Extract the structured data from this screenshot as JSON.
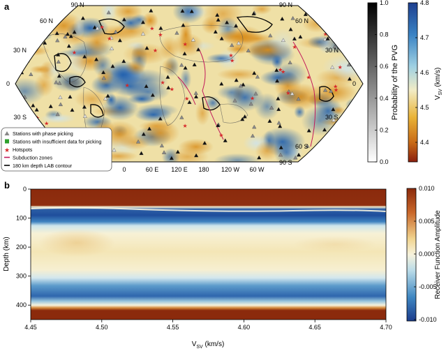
{
  "panel_a": {
    "label": "a",
    "lat_labels": {
      "left": [
        "90 N",
        "60 N",
        "30 N",
        "0",
        "30 S"
      ],
      "right": [
        "90 N",
        "60 N",
        "30 N",
        "0",
        "30 S",
        "60 S",
        "90 S"
      ]
    },
    "lon_labels": [
      "0",
      "60 E",
      "120 E",
      "180",
      "120 W",
      "60 W"
    ],
    "legend": [
      {
        "symbol": "triangle",
        "color": "#888888",
        "label": "Stations with phase picking"
      },
      {
        "symbol": "square",
        "color": "#2ca02c",
        "label": "Stations with insufficient data for picking"
      },
      {
        "symbol": "star",
        "color": "#d62728",
        "label": "Hotspots"
      },
      {
        "symbol": "line",
        "color": "#c2185b",
        "label": "Subduction zones"
      },
      {
        "symbol": "line",
        "color": "#000000",
        "label": "180 km depth LAB contour"
      }
    ],
    "colorbar_pvg": {
      "label": "Probability of the PVG",
      "ticks": [
        "1.0",
        "0.8",
        "0.6",
        "0.4",
        "0.2",
        "0.0"
      ]
    },
    "colorbar_vsv": {
      "label_main": "V",
      "label_sub": "SV",
      "label_unit": " (km/s)",
      "ticks": [
        "4.8",
        "4.7",
        "4.6",
        "4.5",
        "4.4"
      ]
    }
  },
  "panel_b": {
    "label": "b",
    "ylabel": "Depth (km)",
    "xlabel_main": "V",
    "xlabel_sub": "SV",
    "xlabel_unit": " (km/s)",
    "colorbar": {
      "label": "Receiver Function Amplitude",
      "ticks": [
        "0.010",
        "0.005",
        "0.000",
        "-0.005",
        "-0.010"
      ]
    }
  },
  "chart_data": {
    "type": "heatmap",
    "title": "",
    "xlabel": "VSV (km/s)",
    "ylabel": "Depth (km)",
    "xlim": [
      4.45,
      4.7
    ],
    "ylim": [
      450,
      0
    ],
    "x_ticks": [
      4.45,
      4.5,
      4.55,
      4.6,
      4.65,
      4.7
    ],
    "y_ticks": [
      0,
      100,
      200,
      300,
      400
    ],
    "colorbar_range": [
      -0.01,
      0.01
    ],
    "bands": [
      {
        "feature": "positive (Moho/surface)",
        "depth_top": 0,
        "depth_bottom": 62,
        "amplitude": 0.01
      },
      {
        "feature": "negative (PVG)",
        "depth_top": 75,
        "depth_bottom": 125,
        "amplitude": -0.009
      },
      {
        "feature": "weak positive",
        "depth_top": 130,
        "depth_bottom": 300,
        "amplitude": 0.002
      },
      {
        "feature": "negative",
        "depth_top": 320,
        "depth_bottom": 395,
        "amplitude": -0.006
      },
      {
        "feature": "positive",
        "depth_top": 410,
        "depth_bottom": 450,
        "amplitude": 0.01
      }
    ]
  },
  "colors": {
    "rf_pos": "#8b2a0c",
    "rf_neg": "#1f4e9c",
    "rf_zero": "#f5f0d7",
    "map_fast": "#2f6fb5",
    "map_slow": "#e7a72c"
  }
}
